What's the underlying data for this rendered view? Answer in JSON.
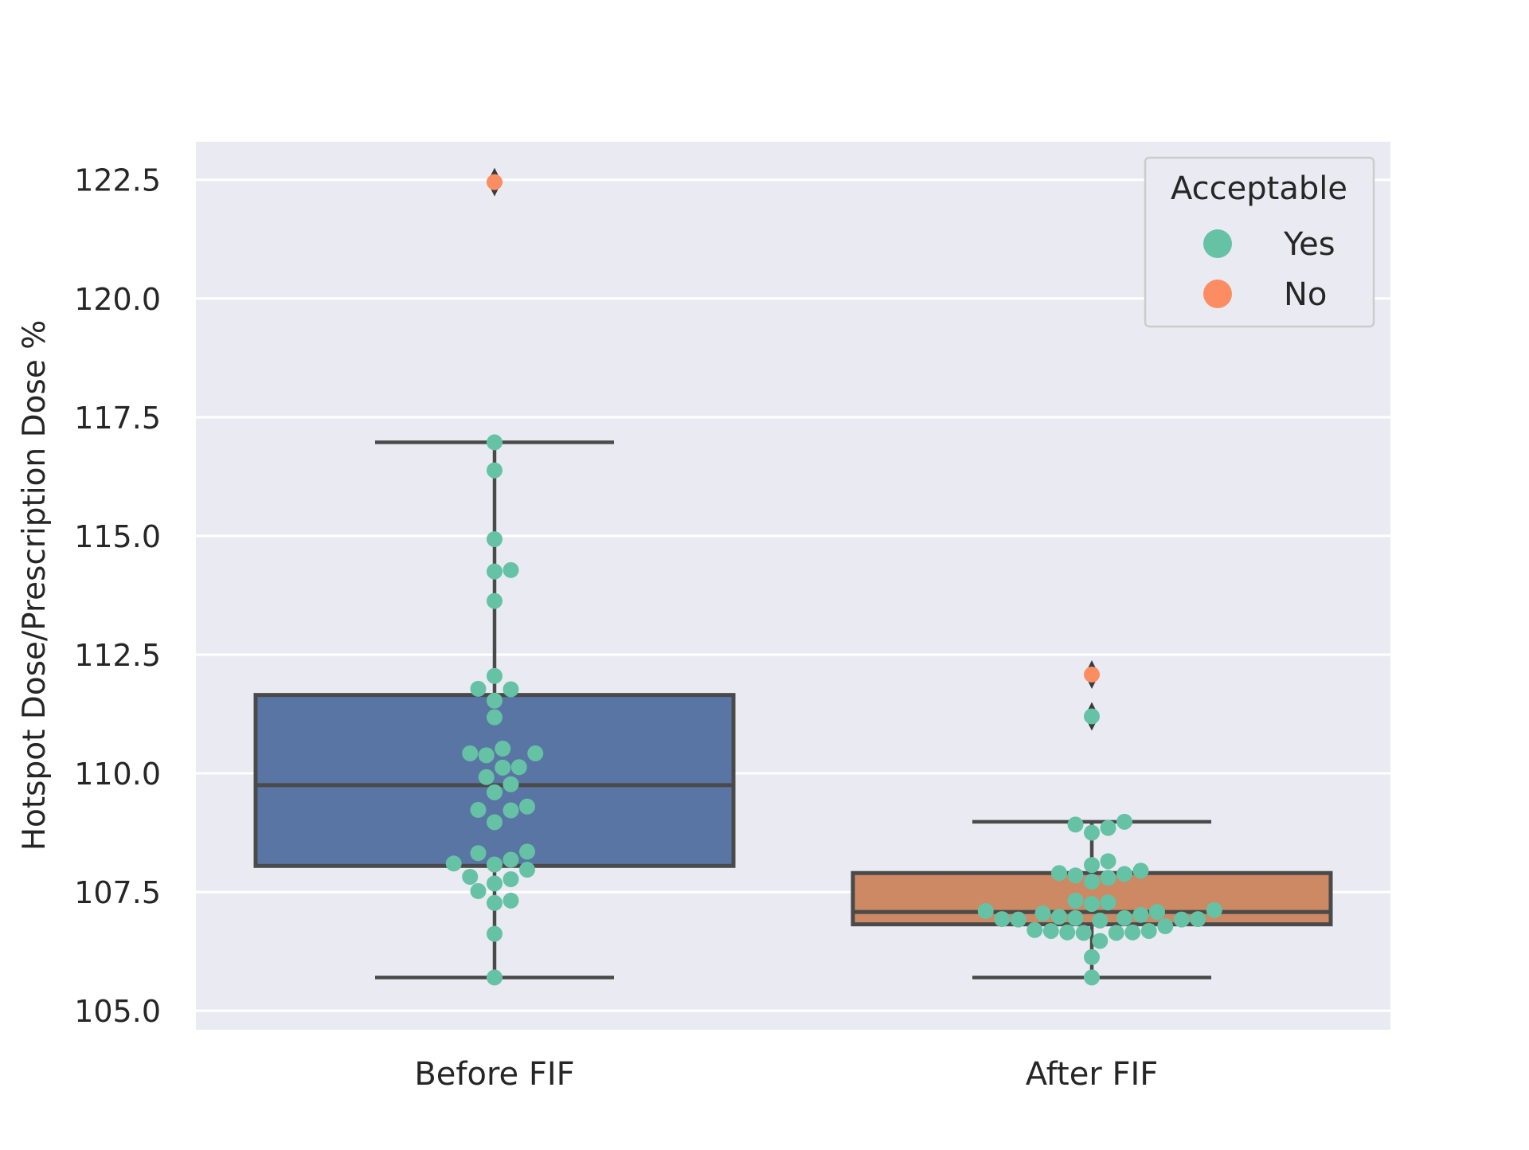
{
  "chart_data": {
    "type": "box",
    "title": "",
    "xlabel": "",
    "ylabel": "Hotspot Dose/Prescription Dose %",
    "ylim": [
      104.6,
      123.3
    ],
    "yticks": [
      105.0,
      107.5,
      110.0,
      112.5,
      115.0,
      117.5,
      120.0,
      122.5
    ],
    "ytick_labels": [
      "105.0",
      "107.5",
      "110.0",
      "112.5",
      "115.0",
      "117.5",
      "120.0",
      "122.5"
    ],
    "grid": true,
    "categories": [
      "Before FIF",
      "After FIF"
    ],
    "boxes": [
      {
        "category": "Before FIF",
        "q1": 108.05,
        "median": 109.75,
        "q3": 111.65,
        "whisker_low": 105.7,
        "whisker_high": 116.97,
        "outliers": [
          122.45
        ],
        "color": "#5975a4"
      },
      {
        "category": "After FIF",
        "q1": 106.82,
        "median": 107.08,
        "q3": 107.9,
        "whisker_low": 105.7,
        "whisker_high": 108.98,
        "outliers": [
          112.08,
          111.2
        ],
        "color": "#cc8963"
      }
    ],
    "legend": {
      "title": "Acceptable",
      "placement": "top-right",
      "entries": [
        {
          "label": "Yes",
          "color": "#66c2a5"
        },
        {
          "label": "No",
          "color": "#fc8d62"
        }
      ]
    },
    "points": {
      "Before FIF": {
        "Yes": [
          116.97,
          116.38,
          114.93,
          114.28,
          114.25,
          113.63,
          112.05,
          111.77,
          111.78,
          111.53,
          111.18,
          110.52,
          110.42,
          110.38,
          110.42,
          110.12,
          110.13,
          109.92,
          109.77,
          109.6,
          109.23,
          109.22,
          109.3,
          108.97,
          108.35,
          108.32,
          108.18,
          108.1,
          108.08,
          107.97,
          107.82,
          107.77,
          107.68,
          107.52,
          107.32,
          107.27,
          106.62,
          105.7
        ],
        "No": [
          122.45
        ]
      },
      "After FIF": {
        "Yes": [
          111.2,
          108.98,
          108.92,
          108.85,
          108.75,
          108.15,
          108.07,
          107.95,
          107.88,
          107.9,
          107.85,
          107.8,
          107.72,
          107.32,
          107.28,
          107.25,
          107.12,
          107.1,
          107.08,
          107.05,
          107.02,
          106.98,
          106.95,
          106.95,
          106.93,
          106.93,
          106.92,
          106.92,
          106.9,
          106.78,
          106.7,
          106.68,
          106.65,
          106.64,
          106.64,
          106.65,
          106.68,
          106.47,
          106.13,
          105.7
        ],
        "No": [
          112.08
        ]
      }
    }
  }
}
